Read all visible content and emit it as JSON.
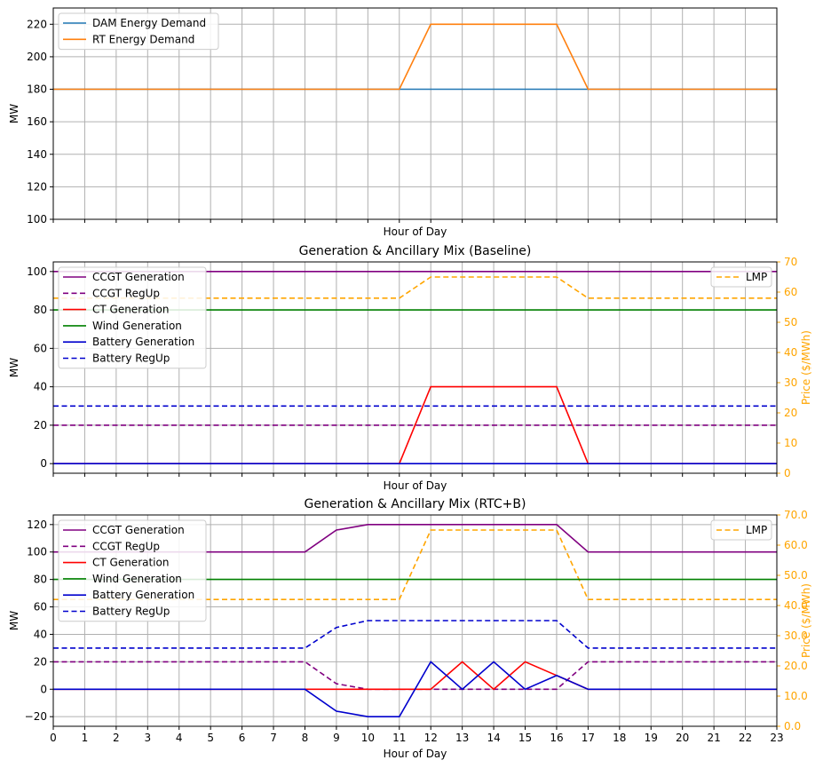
{
  "chart_data": [
    {
      "type": "line",
      "title": "",
      "xlabel": "Hour of Day",
      "ylabel": "MW",
      "x": [
        0,
        1,
        2,
        3,
        4,
        5,
        6,
        7,
        8,
        9,
        10,
        11,
        12,
        13,
        14,
        15,
        16,
        17,
        18,
        19,
        20,
        21,
        22,
        23
      ],
      "xlim": [
        0,
        23
      ],
      "ylim": [
        100,
        230
      ],
      "yticks": [
        100,
        120,
        140,
        160,
        180,
        200,
        220
      ],
      "show_xticklabels": false,
      "grid": true,
      "legend": "upper-left",
      "series": [
        {
          "name": "DAM Energy Demand",
          "color": "#1f77b4",
          "style": "solid",
          "values": [
            180,
            180,
            180,
            180,
            180,
            180,
            180,
            180,
            180,
            180,
            180,
            180,
            180,
            180,
            180,
            180,
            180,
            180,
            180,
            180,
            180,
            180,
            180,
            180
          ]
        },
        {
          "name": "RT Energy Demand",
          "color": "#ff7f0e",
          "style": "solid",
          "values": [
            180,
            180,
            180,
            180,
            180,
            180,
            180,
            180,
            180,
            180,
            180,
            180,
            220,
            220,
            220,
            220,
            220,
            180,
            180,
            180,
            180,
            180,
            180,
            180
          ]
        }
      ]
    },
    {
      "type": "line",
      "title": "Generation & Ancillary Mix (Baseline)",
      "xlabel": "Hour of Day",
      "ylabel": "MW",
      "y2label": "Price ($/MWh)",
      "x": [
        0,
        1,
        2,
        3,
        4,
        5,
        6,
        7,
        8,
        9,
        10,
        11,
        12,
        13,
        14,
        15,
        16,
        17,
        18,
        19,
        20,
        21,
        22,
        23
      ],
      "xlim": [
        0,
        23
      ],
      "ylim": [
        -5,
        105
      ],
      "yticks": [
        0,
        20,
        40,
        60,
        80,
        100
      ],
      "y2lim": [
        0,
        70
      ],
      "y2ticks": [
        "0",
        "10",
        "20",
        "30",
        "40",
        "50",
        "60",
        "70"
      ],
      "show_xticklabels": false,
      "grid": true,
      "legend": "upper-left",
      "legend2": "upper-right",
      "series": [
        {
          "name": "CCGT Generation",
          "color": "#800080",
          "style": "solid",
          "values": [
            100,
            100,
            100,
            100,
            100,
            100,
            100,
            100,
            100,
            100,
            100,
            100,
            100,
            100,
            100,
            100,
            100,
            100,
            100,
            100,
            100,
            100,
            100,
            100
          ]
        },
        {
          "name": "CCGT RegUp",
          "color": "#800080",
          "style": "dashed",
          "values": [
            20,
            20,
            20,
            20,
            20,
            20,
            20,
            20,
            20,
            20,
            20,
            20,
            20,
            20,
            20,
            20,
            20,
            20,
            20,
            20,
            20,
            20,
            20,
            20
          ]
        },
        {
          "name": "CT Generation",
          "color": "#ff0000",
          "style": "solid",
          "values": [
            0,
            0,
            0,
            0,
            0,
            0,
            0,
            0,
            0,
            0,
            0,
            0,
            40,
            40,
            40,
            40,
            40,
            0,
            0,
            0,
            0,
            0,
            0,
            0
          ]
        },
        {
          "name": "Wind Generation",
          "color": "#008000",
          "style": "solid",
          "values": [
            80,
            80,
            80,
            80,
            80,
            80,
            80,
            80,
            80,
            80,
            80,
            80,
            80,
            80,
            80,
            80,
            80,
            80,
            80,
            80,
            80,
            80,
            80,
            80
          ]
        },
        {
          "name": "Battery Generation",
          "color": "#0000cd",
          "style": "solid",
          "values": [
            0,
            0,
            0,
            0,
            0,
            0,
            0,
            0,
            0,
            0,
            0,
            0,
            0,
            0,
            0,
            0,
            0,
            0,
            0,
            0,
            0,
            0,
            0,
            0
          ]
        },
        {
          "name": "Battery RegUp",
          "color": "#0000cd",
          "style": "dashed",
          "values": [
            30,
            30,
            30,
            30,
            30,
            30,
            30,
            30,
            30,
            30,
            30,
            30,
            30,
            30,
            30,
            30,
            30,
            30,
            30,
            30,
            30,
            30,
            30,
            30
          ]
        }
      ],
      "series2": [
        {
          "name": "LMP",
          "color": "#ffa500",
          "style": "dashed",
          "values": [
            58,
            58,
            58,
            58,
            58,
            58,
            58,
            58,
            58,
            58,
            58,
            58,
            65,
            65,
            65,
            65,
            65,
            58,
            58,
            58,
            58,
            58,
            58,
            58
          ]
        }
      ]
    },
    {
      "type": "line",
      "title": "Generation & Ancillary Mix (RTC+B)",
      "xlabel": "Hour of Day",
      "ylabel": "MW",
      "y2label": "Price ($/MWh)",
      "x": [
        0,
        1,
        2,
        3,
        4,
        5,
        6,
        7,
        8,
        9,
        10,
        11,
        12,
        13,
        14,
        15,
        16,
        17,
        18,
        19,
        20,
        21,
        22,
        23
      ],
      "xlim": [
        0,
        23
      ],
      "xticks": [
        "0",
        "1",
        "2",
        "3",
        "4",
        "5",
        "6",
        "7",
        "8",
        "9",
        "10",
        "11",
        "12",
        "13",
        "14",
        "15",
        "16",
        "17",
        "18",
        "19",
        "20",
        "21",
        "22",
        "23"
      ],
      "ylim": [
        -27,
        127
      ],
      "yticks": [
        -20,
        0,
        20,
        40,
        60,
        80,
        100,
        120
      ],
      "y2lim": [
        0,
        70
      ],
      "y2ticks": [
        "0.0",
        "10.0",
        "20.0",
        "30.0",
        "40.0",
        "50.0",
        "60.0",
        "70.0"
      ],
      "show_xticklabels": true,
      "grid": true,
      "legend": "upper-left",
      "legend2": "upper-right",
      "series": [
        {
          "name": "CCGT Generation",
          "color": "#800080",
          "style": "solid",
          "values": [
            100,
            100,
            100,
            100,
            100,
            100,
            100,
            100,
            100,
            116,
            120,
            120,
            120,
            120,
            120,
            120,
            120,
            100,
            100,
            100,
            100,
            100,
            100,
            100
          ]
        },
        {
          "name": "CCGT RegUp",
          "color": "#800080",
          "style": "dashed",
          "values": [
            20,
            20,
            20,
            20,
            20,
            20,
            20,
            20,
            20,
            4,
            0,
            0,
            0,
            0,
            0,
            0,
            0,
            20,
            20,
            20,
            20,
            20,
            20,
            20
          ]
        },
        {
          "name": "CT Generation",
          "color": "#ff0000",
          "style": "solid",
          "values": [
            0,
            0,
            0,
            0,
            0,
            0,
            0,
            0,
            0,
            0,
            0,
            0,
            0,
            20,
            0,
            20,
            10,
            0,
            0,
            0,
            0,
            0,
            0,
            0
          ]
        },
        {
          "name": "Wind Generation",
          "color": "#008000",
          "style": "solid",
          "values": [
            80,
            80,
            80,
            80,
            80,
            80,
            80,
            80,
            80,
            80,
            80,
            80,
            80,
            80,
            80,
            80,
            80,
            80,
            80,
            80,
            80,
            80,
            80,
            80
          ]
        },
        {
          "name": "Battery Generation",
          "color": "#0000cd",
          "style": "solid",
          "values": [
            0,
            0,
            0,
            0,
            0,
            0,
            0,
            0,
            0,
            -16,
            -20,
            -20,
            20,
            0,
            20,
            0,
            10,
            0,
            0,
            0,
            0,
            0,
            0,
            0
          ]
        },
        {
          "name": "Battery RegUp",
          "color": "#0000cd",
          "style": "dashed",
          "values": [
            30,
            30,
            30,
            30,
            30,
            30,
            30,
            30,
            30,
            45,
            50,
            50,
            50,
            50,
            50,
            50,
            50,
            30,
            30,
            30,
            30,
            30,
            30,
            30
          ]
        }
      ],
      "series2": [
        {
          "name": "LMP",
          "color": "#ffa500",
          "style": "dashed",
          "values": [
            42,
            42,
            42,
            42,
            42,
            42,
            42,
            42,
            42,
            42,
            42,
            42,
            65,
            65,
            65,
            65,
            65,
            42,
            42,
            42,
            42,
            42,
            42,
            42
          ]
        }
      ]
    }
  ]
}
